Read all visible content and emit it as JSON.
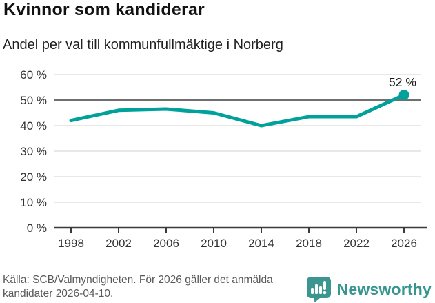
{
  "header": {
    "title": "Kvinnor som kandiderar",
    "subtitle": "Andel per val till kommunfullmäktige i Norberg"
  },
  "chart_data": {
    "type": "line",
    "title": "Kvinnor som kandiderar",
    "subtitle": "Andel per val till kommunfullmäktige i Norberg",
    "categories": [
      "1998",
      "2002",
      "2006",
      "2010",
      "2014",
      "2018",
      "2022",
      "2026"
    ],
    "values": [
      42,
      46,
      46.5,
      45,
      40,
      43.5,
      43.5,
      52
    ],
    "xlabel": "",
    "ylabel": "",
    "ylim": [
      0,
      60
    ],
    "yticks": [
      0,
      10,
      20,
      30,
      40,
      50,
      60
    ],
    "ytick_labels": [
      "0 %",
      "10 %",
      "20 %",
      "30 %",
      "40 %",
      "50 %",
      "60 %"
    ],
    "highlight_gridline": 50,
    "last_point_label": "52 %",
    "grid": "on",
    "legend": "none",
    "colors": {
      "line": "#00a19a",
      "gridline": "#d9d9d9",
      "gridline_highlight": "#6f6f6f",
      "axis": "#3a3a3a",
      "tick_label": "#333333",
      "point_label": "#1a1a1a"
    }
  },
  "footer": {
    "source": "Källa: SCB/Valmyndigheten. För 2026 gäller det anmälda kandidater 2026-04-10.",
    "brand": "Newsworthy"
  }
}
